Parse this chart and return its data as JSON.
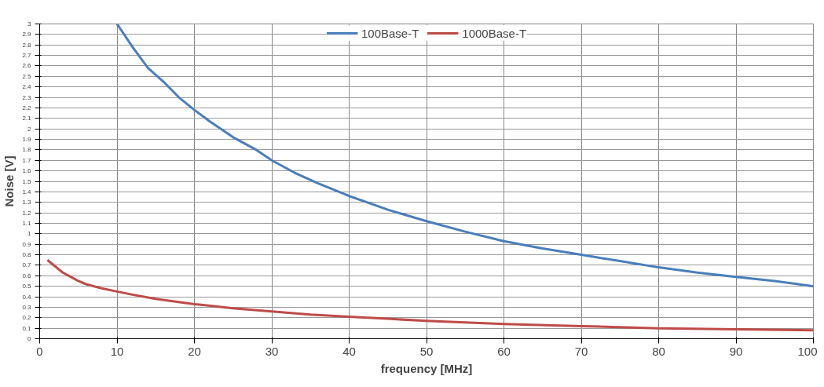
{
  "chart_data": {
    "type": "line",
    "xlabel": "frequency [MHz]",
    "ylabel": "Noise [V]",
    "xlim": [
      0,
      100
    ],
    "xticks": [
      0,
      10,
      20,
      30,
      40,
      50,
      60,
      70,
      80,
      90,
      100
    ],
    "ylim": [
      0,
      3
    ],
    "yticks": [
      0,
      0.1,
      0.2,
      0.3,
      0.4,
      0.5,
      0.6,
      0.7,
      0.8,
      0.9,
      1,
      1.1,
      1.2,
      1.3,
      1.4,
      1.5,
      1.6,
      1.7,
      1.8,
      1.9,
      2,
      2.1,
      2.2,
      2.3,
      2.4,
      2.5,
      2.6,
      2.7,
      2.8,
      2.9,
      3
    ],
    "grid": true,
    "legend": "top",
    "marker": "none",
    "line_style": "solid",
    "series": [
      {
        "name": "100Base-T",
        "color": "#4a7ebb",
        "x": [
          10,
          12,
          14,
          16,
          18,
          20,
          22,
          25,
          28,
          30,
          33,
          36,
          40,
          45,
          50,
          55,
          60,
          65,
          70,
          75,
          80,
          85,
          90,
          95,
          100
        ],
        "values": [
          3.0,
          2.78,
          2.58,
          2.45,
          2.3,
          2.18,
          2.07,
          1.92,
          1.8,
          1.7,
          1.58,
          1.48,
          1.36,
          1.23,
          1.12,
          1.02,
          0.93,
          0.86,
          0.8,
          0.74,
          0.68,
          0.63,
          0.59,
          0.55,
          0.5
        ]
      },
      {
        "name": "1000Base-T",
        "color": "#be4b48",
        "x": [
          1,
          2,
          3,
          4,
          5,
          6,
          8,
          10,
          12,
          15,
          20,
          25,
          30,
          35,
          40,
          45,
          50,
          60,
          70,
          80,
          90,
          100
        ],
        "values": [
          0.75,
          0.69,
          0.63,
          0.59,
          0.55,
          0.52,
          0.48,
          0.45,
          0.42,
          0.38,
          0.33,
          0.29,
          0.26,
          0.23,
          0.21,
          0.19,
          0.17,
          0.14,
          0.12,
          0.1,
          0.09,
          0.08
        ]
      }
    ]
  }
}
